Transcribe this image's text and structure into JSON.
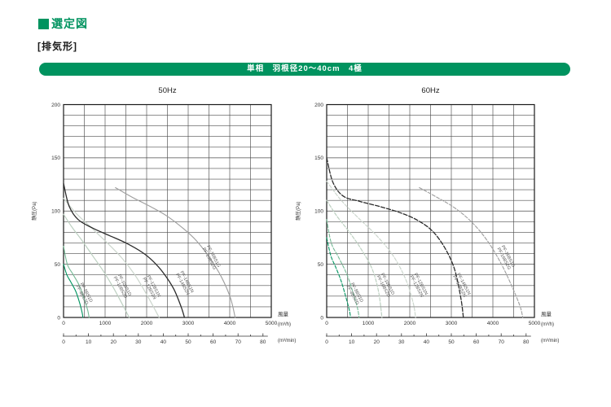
{
  "header": {
    "title": "選定図",
    "subtitle": "[排気形]",
    "banner": "単相　羽根径20～40cm　4極",
    "accent_color": "#00935f"
  },
  "chart_data": [
    {
      "type": "line",
      "title": "50Hz",
      "ylabel": "静圧(Pa)",
      "xlabel": "風量",
      "x_unit": "(m³/h)",
      "x2_unit": "(m³/min)",
      "xlim": [
        0,
        5000
      ],
      "ylim": [
        0,
        200
      ],
      "x_ticks": [
        0,
        1000,
        2000,
        3000,
        4000,
        5000
      ],
      "y_ticks": [
        0,
        50,
        100,
        150,
        200
      ],
      "x_minor_step": 500,
      "y_minor_step": 10,
      "x2lim": [
        0,
        80
      ],
      "x2_ticks": [
        0,
        10,
        20,
        30,
        40,
        50,
        60,
        70,
        80
      ],
      "x2_minor_step": 5,
      "grid": true,
      "legend_position": "on-curve-rotated-labels",
      "series": [
        {
          "name": "PF-8BS1D",
          "color": "#00945f",
          "dashed": false,
          "width": 1.1,
          "points": [
            [
              0,
              50
            ],
            [
              80,
              40
            ],
            [
              180,
              33
            ],
            [
              300,
              24
            ],
            [
              400,
              12
            ],
            [
              450,
              4
            ],
            [
              465,
              0
            ]
          ]
        },
        {
          "name": "PF-8BS2D",
          "color": "#74b995",
          "dashed": false,
          "width": 1.1,
          "points": [
            [
              0,
              67
            ],
            [
              90,
              50
            ],
            [
              220,
              41
            ],
            [
              380,
              30
            ],
            [
              500,
              17
            ],
            [
              580,
              7
            ],
            [
              615,
              0
            ]
          ]
        },
        {
          "name": "PF-10BS1D / PF-10BS2D",
          "color": "#bdd0c1",
          "dashed": false,
          "width": 1.2,
          "points": [
            [
              0,
              97
            ],
            [
              200,
              85
            ],
            [
              450,
              72
            ],
            [
              700,
              58
            ],
            [
              950,
              44
            ],
            [
              1200,
              28
            ],
            [
              1420,
              12
            ],
            [
              1580,
              0
            ]
          ]
        },
        {
          "name": "PF-12BS1N / PF-12BS2N",
          "color": "#ccd6cd",
          "dashed": false,
          "width": 1.2,
          "points": [
            [
              0,
              112
            ],
            [
              300,
              98
            ],
            [
              650,
              85
            ],
            [
              1000,
              72
            ],
            [
              1400,
              56
            ],
            [
              1750,
              38
            ],
            [
              2080,
              16
            ],
            [
              2300,
              0
            ]
          ]
        },
        {
          "name": "PF-14BS1N / PF-14BS2N",
          "color": "#2b2b2b",
          "dashed": false,
          "width": 1.3,
          "points": [
            [
              0,
              126
            ],
            [
              130,
              105
            ],
            [
              350,
              92
            ],
            [
              700,
              84
            ],
            [
              1100,
              77
            ],
            [
              1500,
              70
            ],
            [
              1900,
              61
            ],
            [
              2150,
              53
            ],
            [
              2400,
              42
            ],
            [
              2650,
              27
            ],
            [
              2830,
              10
            ],
            [
              2910,
              0
            ]
          ]
        },
        {
          "name": "PF-16BS1G / PF-16BS2G",
          "color": "#9e9e9e",
          "dashed": false,
          "width": 1.1,
          "points": [
            [
              1250,
              122
            ],
            [
              1650,
              113
            ],
            [
              2100,
              104
            ],
            [
              2500,
              95
            ],
            [
              2900,
              83
            ],
            [
              3200,
              72
            ],
            [
              3500,
              57
            ],
            [
              3800,
              38
            ],
            [
              4020,
              18
            ],
            [
              4130,
              0
            ]
          ]
        }
      ],
      "curve_labels": [
        {
          "lines": [
            "PF-8BS1D",
            "PF-8BS2D"
          ],
          "pos": [
            480,
            22
          ]
        },
        {
          "lines": [
            "PF-10BS1D",
            "PF-10BS2D"
          ],
          "pos": [
            1400,
            29
          ]
        },
        {
          "lines": [
            "PF-12BS1N",
            "PF-12BS2N"
          ],
          "pos": [
            2100,
            28
          ]
        },
        {
          "lines": [
            "PF-14BS1N",
            "PF-14BS2N"
          ],
          "pos": [
            2900,
            32
          ]
        },
        {
          "lines": [
            "PF-16BS1G",
            "PF-16BS2G"
          ],
          "pos": [
            3540,
            56
          ]
        }
      ]
    },
    {
      "type": "line",
      "title": "60Hz",
      "ylabel": "静圧(Pa)",
      "xlabel": "風量",
      "x_unit": "(m³/h)",
      "x2_unit": "(m³/min)",
      "xlim": [
        0,
        5000
      ],
      "ylim": [
        0,
        200
      ],
      "x_ticks": [
        0,
        1000,
        2000,
        3000,
        4000,
        5000
      ],
      "y_ticks": [
        0,
        50,
        100,
        150,
        200
      ],
      "x_minor_step": 500,
      "y_minor_step": 10,
      "x2lim": [
        0,
        80
      ],
      "x2_ticks": [
        0,
        10,
        20,
        30,
        40,
        50,
        60,
        70,
        80
      ],
      "x2_minor_step": 5,
      "grid": true,
      "legend_position": "on-curve-rotated-labels",
      "series": [
        {
          "name": "PF-8BS1D",
          "color": "#00945f",
          "dashed": true,
          "width": 1.1,
          "points": [
            [
              0,
              75
            ],
            [
              100,
              58
            ],
            [
              220,
              47
            ],
            [
              350,
              34
            ],
            [
              470,
              18
            ],
            [
              550,
              6
            ],
            [
              575,
              0
            ]
          ]
        },
        {
          "name": "PF-8BS2D",
          "color": "#74b995",
          "dashed": true,
          "width": 1.1,
          "points": [
            [
              0,
              92
            ],
            [
              110,
              70
            ],
            [
              280,
              57
            ],
            [
              480,
              41
            ],
            [
              630,
              24
            ],
            [
              740,
              9
            ],
            [
              780,
              0
            ]
          ]
        },
        {
          "name": "PF-10BS1D / PF-10BS2D",
          "color": "#bdd0c1",
          "dashed": true,
          "width": 1.2,
          "points": [
            [
              0,
              110
            ],
            [
              250,
              95
            ],
            [
              550,
              80
            ],
            [
              850,
              63
            ],
            [
              1100,
              45
            ],
            [
              1250,
              24
            ],
            [
              1330,
              0
            ]
          ]
        },
        {
          "name": "PF-12BS1N / PF-12BS2N",
          "color": "#ccd6cd",
          "dashed": true,
          "width": 1.2,
          "points": [
            [
              0,
              128
            ],
            [
              350,
              110
            ],
            [
              750,
              94
            ],
            [
              1200,
              77
            ],
            [
              1600,
              58
            ],
            [
              1900,
              36
            ],
            [
              2080,
              14
            ],
            [
              2140,
              0
            ]
          ]
        },
        {
          "name": "PF-14BS1N / PF-14BS2N",
          "color": "#2b2b2b",
          "dashed": true,
          "width": 1.3,
          "points": [
            [
              0,
              150
            ],
            [
              150,
              127
            ],
            [
              400,
              114
            ],
            [
              800,
              109
            ],
            [
              1300,
              104
            ],
            [
              1800,
              98
            ],
            [
              2200,
              91
            ],
            [
              2550,
              81
            ],
            [
              2850,
              65
            ],
            [
              3080,
              45
            ],
            [
              3230,
              18
            ],
            [
              3290,
              0
            ]
          ]
        },
        {
          "name": "PF-16BS1G / PF-16BS2G",
          "color": "#9e9e9e",
          "dashed": true,
          "width": 1.1,
          "points": [
            [
              2230,
              122
            ],
            [
              2650,
              113
            ],
            [
              3080,
              103
            ],
            [
              3480,
              90
            ],
            [
              3850,
              73
            ],
            [
              4180,
              52
            ],
            [
              4450,
              30
            ],
            [
              4650,
              11
            ],
            [
              4720,
              0
            ]
          ]
        }
      ],
      "curve_labels": [
        {
          "lines": [
            "PF-8BS1D",
            "PF-8BS2D"
          ],
          "pos": [
            660,
            22
          ]
        },
        {
          "lines": [
            "PF-10BS1D",
            "PF-10BS2D"
          ],
          "pos": [
            1400,
            30
          ]
        },
        {
          "lines": [
            "PF-12BS1N",
            "PF-12BS2N"
          ],
          "pos": [
            2200,
            30
          ]
        },
        {
          "lines": [
            "PF-14BS1N",
            "PF-14BS2N"
          ],
          "pos": [
            3230,
            30
          ]
        },
        {
          "lines": [
            "PF-16BS1G",
            "PF-16BS2G"
          ],
          "pos": [
            4300,
            56
          ]
        }
      ]
    }
  ]
}
